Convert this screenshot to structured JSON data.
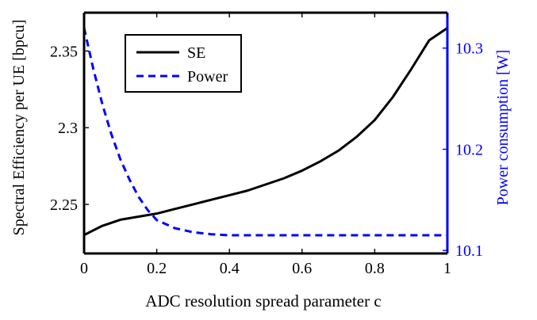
{
  "chart_data": {
    "type": "line",
    "title": "",
    "xlabel": "ADC resolution spread parameter c",
    "ylabel_left": "Spectral Efficiency per UE [bpcu]",
    "ylabel_right": "Power consumption [W]",
    "xlim": [
      0,
      1
    ],
    "ylim_left": [
      2.218,
      2.375
    ],
    "ylim_right": [
      10.097,
      10.335
    ],
    "x_ticks": [
      0,
      0.2,
      0.4,
      0.6,
      0.8,
      1
    ],
    "x_tick_labels": [
      "0",
      "0.2",
      "0.4",
      "0.6",
      "0.8",
      "1"
    ],
    "y_left_ticks": [
      2.25,
      2.3,
      2.35
    ],
    "y_left_tick_labels": [
      "2.25",
      "2.3",
      "2.35"
    ],
    "y_right_ticks": [
      10.1,
      10.2,
      10.3
    ],
    "y_right_tick_labels": [
      "10.1",
      "10.2",
      "10.3"
    ],
    "grid": false,
    "legend_position": "top-left",
    "series": [
      {
        "name": "SE",
        "axis": "left",
        "color": "#000000",
        "style": "solid",
        "x": [
          0,
          0.05,
          0.1,
          0.15,
          0.2,
          0.25,
          0.3,
          0.35,
          0.4,
          0.45,
          0.5,
          0.55,
          0.6,
          0.65,
          0.7,
          0.75,
          0.8,
          0.85,
          0.9,
          0.95,
          1
        ],
        "y": [
          2.23,
          2.236,
          2.24,
          2.242,
          2.244,
          2.247,
          2.25,
          2.253,
          2.256,
          2.259,
          2.263,
          2.267,
          2.272,
          2.278,
          2.285,
          2.294,
          2.305,
          2.32,
          2.338,
          2.357,
          2.365
        ]
      },
      {
        "name": "Power",
        "axis": "right",
        "color": "#0000ff",
        "style": "dashed",
        "x": [
          0,
          0.025,
          0.05,
          0.075,
          0.1,
          0.125,
          0.15,
          0.175,
          0.2,
          0.25,
          0.3,
          0.35,
          0.4,
          0.45,
          0.5,
          0.6,
          0.7,
          0.8,
          0.9,
          1
        ],
        "y": [
          10.32,
          10.28,
          10.245,
          10.215,
          10.19,
          10.17,
          10.153,
          10.14,
          10.13,
          10.122,
          10.118,
          10.116,
          10.115,
          10.115,
          10.115,
          10.115,
          10.115,
          10.115,
          10.115,
          10.115
        ]
      }
    ]
  }
}
